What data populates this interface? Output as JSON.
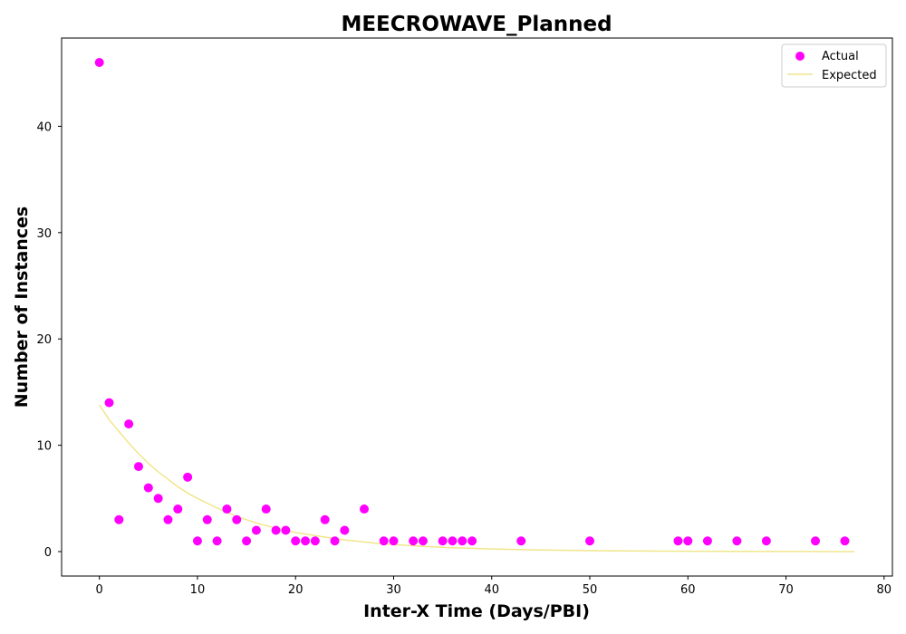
{
  "chart_data": {
    "type": "scatter",
    "title": "MEECROWAVE_Planned",
    "xlabel": "Inter-X Time (Days/PBI)",
    "ylabel": "Number of Instances",
    "xlim": [
      -3.85,
      80.85
    ],
    "ylim": [
      -2.3,
      48.3
    ],
    "xticks": [
      0,
      10,
      20,
      30,
      40,
      50,
      60,
      70,
      80
    ],
    "yticks": [
      0,
      10,
      20,
      30,
      40
    ],
    "grid": false,
    "legend_position": "top-right",
    "series": [
      {
        "name": "Actual",
        "kind": "scatter",
        "color": "#ff00ff",
        "points": [
          [
            0,
            46
          ],
          [
            1,
            14
          ],
          [
            2,
            3
          ],
          [
            3,
            12
          ],
          [
            4,
            8
          ],
          [
            5,
            6
          ],
          [
            6,
            5
          ],
          [
            7,
            3
          ],
          [
            8,
            4
          ],
          [
            9,
            7
          ],
          [
            10,
            1
          ],
          [
            11,
            3
          ],
          [
            12,
            1
          ],
          [
            13,
            4
          ],
          [
            14,
            3
          ],
          [
            15,
            1
          ],
          [
            16,
            2
          ],
          [
            17,
            4
          ],
          [
            18,
            2
          ],
          [
            19,
            2
          ],
          [
            20,
            1
          ],
          [
            21,
            1
          ],
          [
            22,
            1
          ],
          [
            23,
            3
          ],
          [
            24,
            1
          ],
          [
            25,
            2
          ],
          [
            27,
            4
          ],
          [
            29,
            1
          ],
          [
            30,
            1
          ],
          [
            32,
            1
          ],
          [
            33,
            1
          ],
          [
            35,
            1
          ],
          [
            36,
            1
          ],
          [
            37,
            1
          ],
          [
            38,
            1
          ],
          [
            43,
            1
          ],
          [
            50,
            1
          ],
          [
            59,
            1
          ],
          [
            60,
            1
          ],
          [
            62,
            1
          ],
          [
            65,
            1
          ],
          [
            68,
            1
          ],
          [
            73,
            1
          ],
          [
            76,
            1
          ]
        ]
      },
      {
        "name": "Expected",
        "kind": "line",
        "color": "#f0e68c",
        "x": [
          0,
          1,
          2,
          3,
          4,
          5,
          6,
          7,
          8,
          9,
          10,
          12,
          14,
          16,
          18,
          20,
          22,
          25,
          28,
          30,
          33,
          36,
          40,
          45,
          50,
          55,
          60,
          65,
          70,
          75,
          77
        ],
        "values": [
          13.8,
          12.4,
          11.3,
          10.2,
          9.2,
          8.3,
          7.5,
          6.8,
          6.1,
          5.5,
          5.0,
          4.1,
          3.3,
          2.7,
          2.2,
          1.8,
          1.5,
          1.1,
          0.8,
          0.66,
          0.49,
          0.36,
          0.24,
          0.15,
          0.09,
          0.05,
          0.03,
          0.02,
          0.01,
          0.005,
          0.0
        ]
      }
    ]
  }
}
